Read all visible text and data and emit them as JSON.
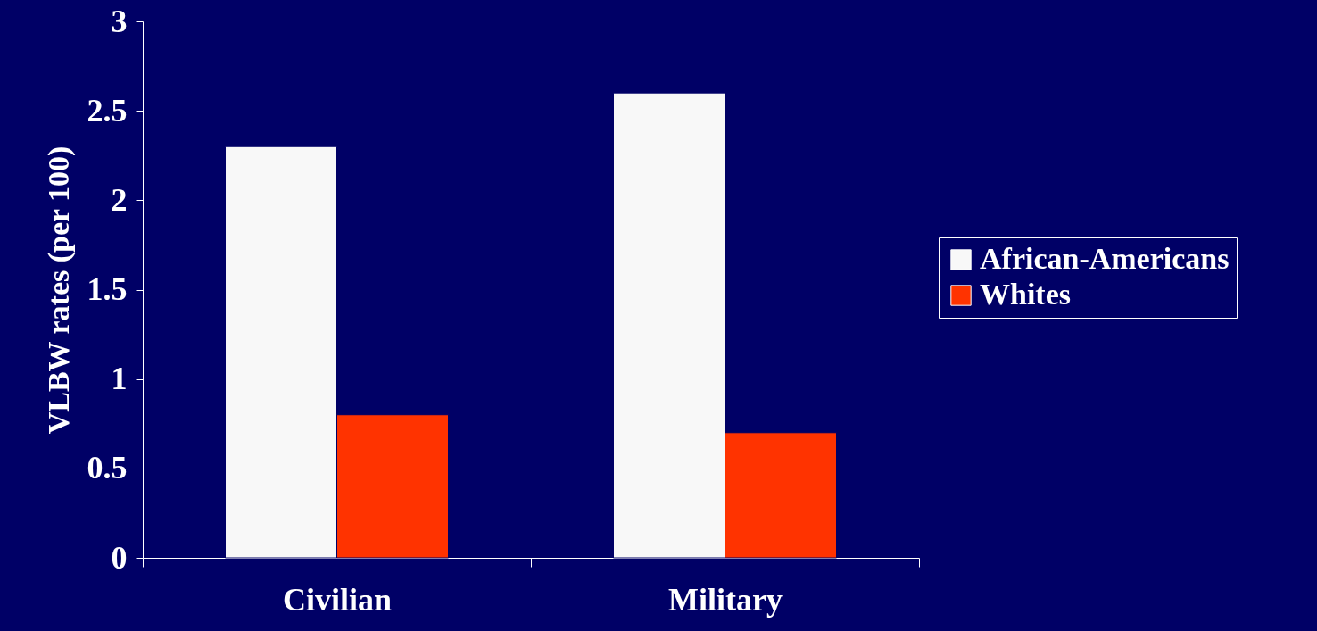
{
  "chart_data": {
    "type": "bar",
    "ylabel": "VLBW rates (per 100)",
    "categories": [
      "Civilian",
      "Military"
    ],
    "series": [
      {
        "name": "African-Americans",
        "color": "#f8f8f8",
        "values": [
          2.3,
          2.6
        ]
      },
      {
        "name": "Whites",
        "color": "#ff3300",
        "values": [
          0.8,
          0.7
        ]
      }
    ],
    "ylim": [
      0,
      3
    ],
    "yticks": [
      0,
      0.5,
      1,
      1.5,
      2,
      2.5,
      3
    ],
    "grid": false,
    "legend": "right"
  }
}
